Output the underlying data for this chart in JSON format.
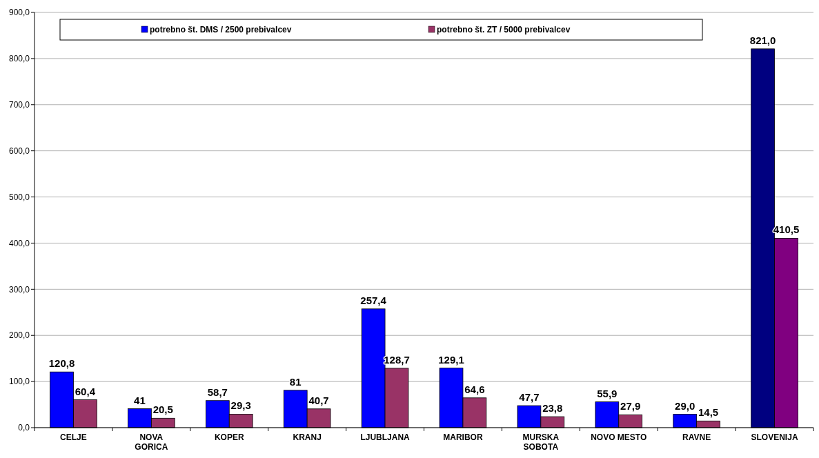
{
  "chart_data": {
    "type": "bar",
    "categories": [
      "CELJE",
      "NOVA GORICA",
      "KOPER",
      "KRANJ",
      "LJUBLJANA",
      "MARIBOR",
      "MURSKA SOBOTA",
      "NOVO MESTO",
      "RAVNE",
      "SLOVENIJA"
    ],
    "series": [
      {
        "name": "potrebno št. DMS / 2500 prebivalcev",
        "color": "#0000ff",
        "colors": [
          "#0000ff",
          "#0000ff",
          "#0000ff",
          "#0000ff",
          "#0000ff",
          "#0000ff",
          "#0000ff",
          "#0000ff",
          "#0000ff",
          "#000080"
        ],
        "values": [
          120.8,
          41,
          58.7,
          81,
          257.4,
          129.1,
          47.7,
          55.9,
          29.0,
          821.0
        ],
        "value_labels": [
          "120,8",
          "41",
          "58,7",
          "81",
          "257,4",
          "129,1",
          "47,7",
          "55,9",
          "29,0",
          "821,0"
        ]
      },
      {
        "name": "potrebno št. ZT / 5000 prebivalcev",
        "color": "#993366",
        "colors": [
          "#993366",
          "#993366",
          "#993366",
          "#993366",
          "#993366",
          "#993366",
          "#993366",
          "#993366",
          "#993366",
          "#800080"
        ],
        "values": [
          60.4,
          20.5,
          29.3,
          40.7,
          128.7,
          64.6,
          23.8,
          27.9,
          14.5,
          410.5
        ],
        "value_labels": [
          "60,4",
          "20,5",
          "29,3",
          "40,7",
          "128,7",
          "64,6",
          "23,8",
          "27,9",
          "14,5",
          "410,5"
        ]
      }
    ],
    "ylim": [
      0,
      900
    ],
    "yticks": [
      {
        "value": 0,
        "label": "0,0"
      },
      {
        "value": 100,
        "label": "100,0"
      },
      {
        "value": 200,
        "label": "200,0"
      },
      {
        "value": 300,
        "label": "300,0"
      },
      {
        "value": 400,
        "label": "400,0"
      },
      {
        "value": 500,
        "label": "500,0"
      },
      {
        "value": 600,
        "label": "600,0"
      },
      {
        "value": 700,
        "label": "700,0"
      },
      {
        "value": 800,
        "label": "800,0"
      },
      {
        "value": 900,
        "label": "900,0"
      }
    ],
    "grid": "y",
    "legend": "top"
  }
}
